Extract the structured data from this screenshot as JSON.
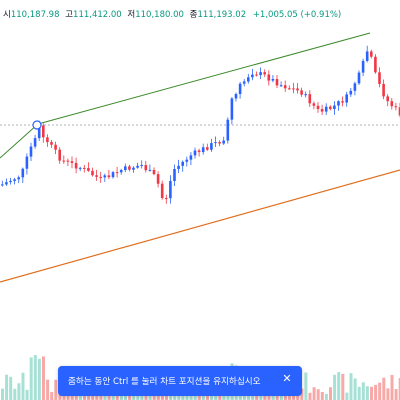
{
  "ohlc": {
    "open_label": "시",
    "open": "110,187.98",
    "high_label": "고",
    "high": "111,412.00",
    "low_label": "저",
    "low": "110,180.00",
    "close_label": "종",
    "close": "111,193.02",
    "change": "+1,005.05 (+0.91%)"
  },
  "toast": {
    "message": "줌하는 동안 Ctrl 를 눌러 차트 포지션을 유지하십시오",
    "close_icon": "close-icon"
  },
  "colors": {
    "up": "#089981",
    "down": "#f23645",
    "up_candle": "#2962ff",
    "down_candle": "#f23645",
    "trendline_upper": "#3a8a2a",
    "trendline_lower": "#e07020",
    "volume_up": "#a7e0d5",
    "volume_down": "#f7a9a7",
    "accent": "#2962ff"
  }
}
